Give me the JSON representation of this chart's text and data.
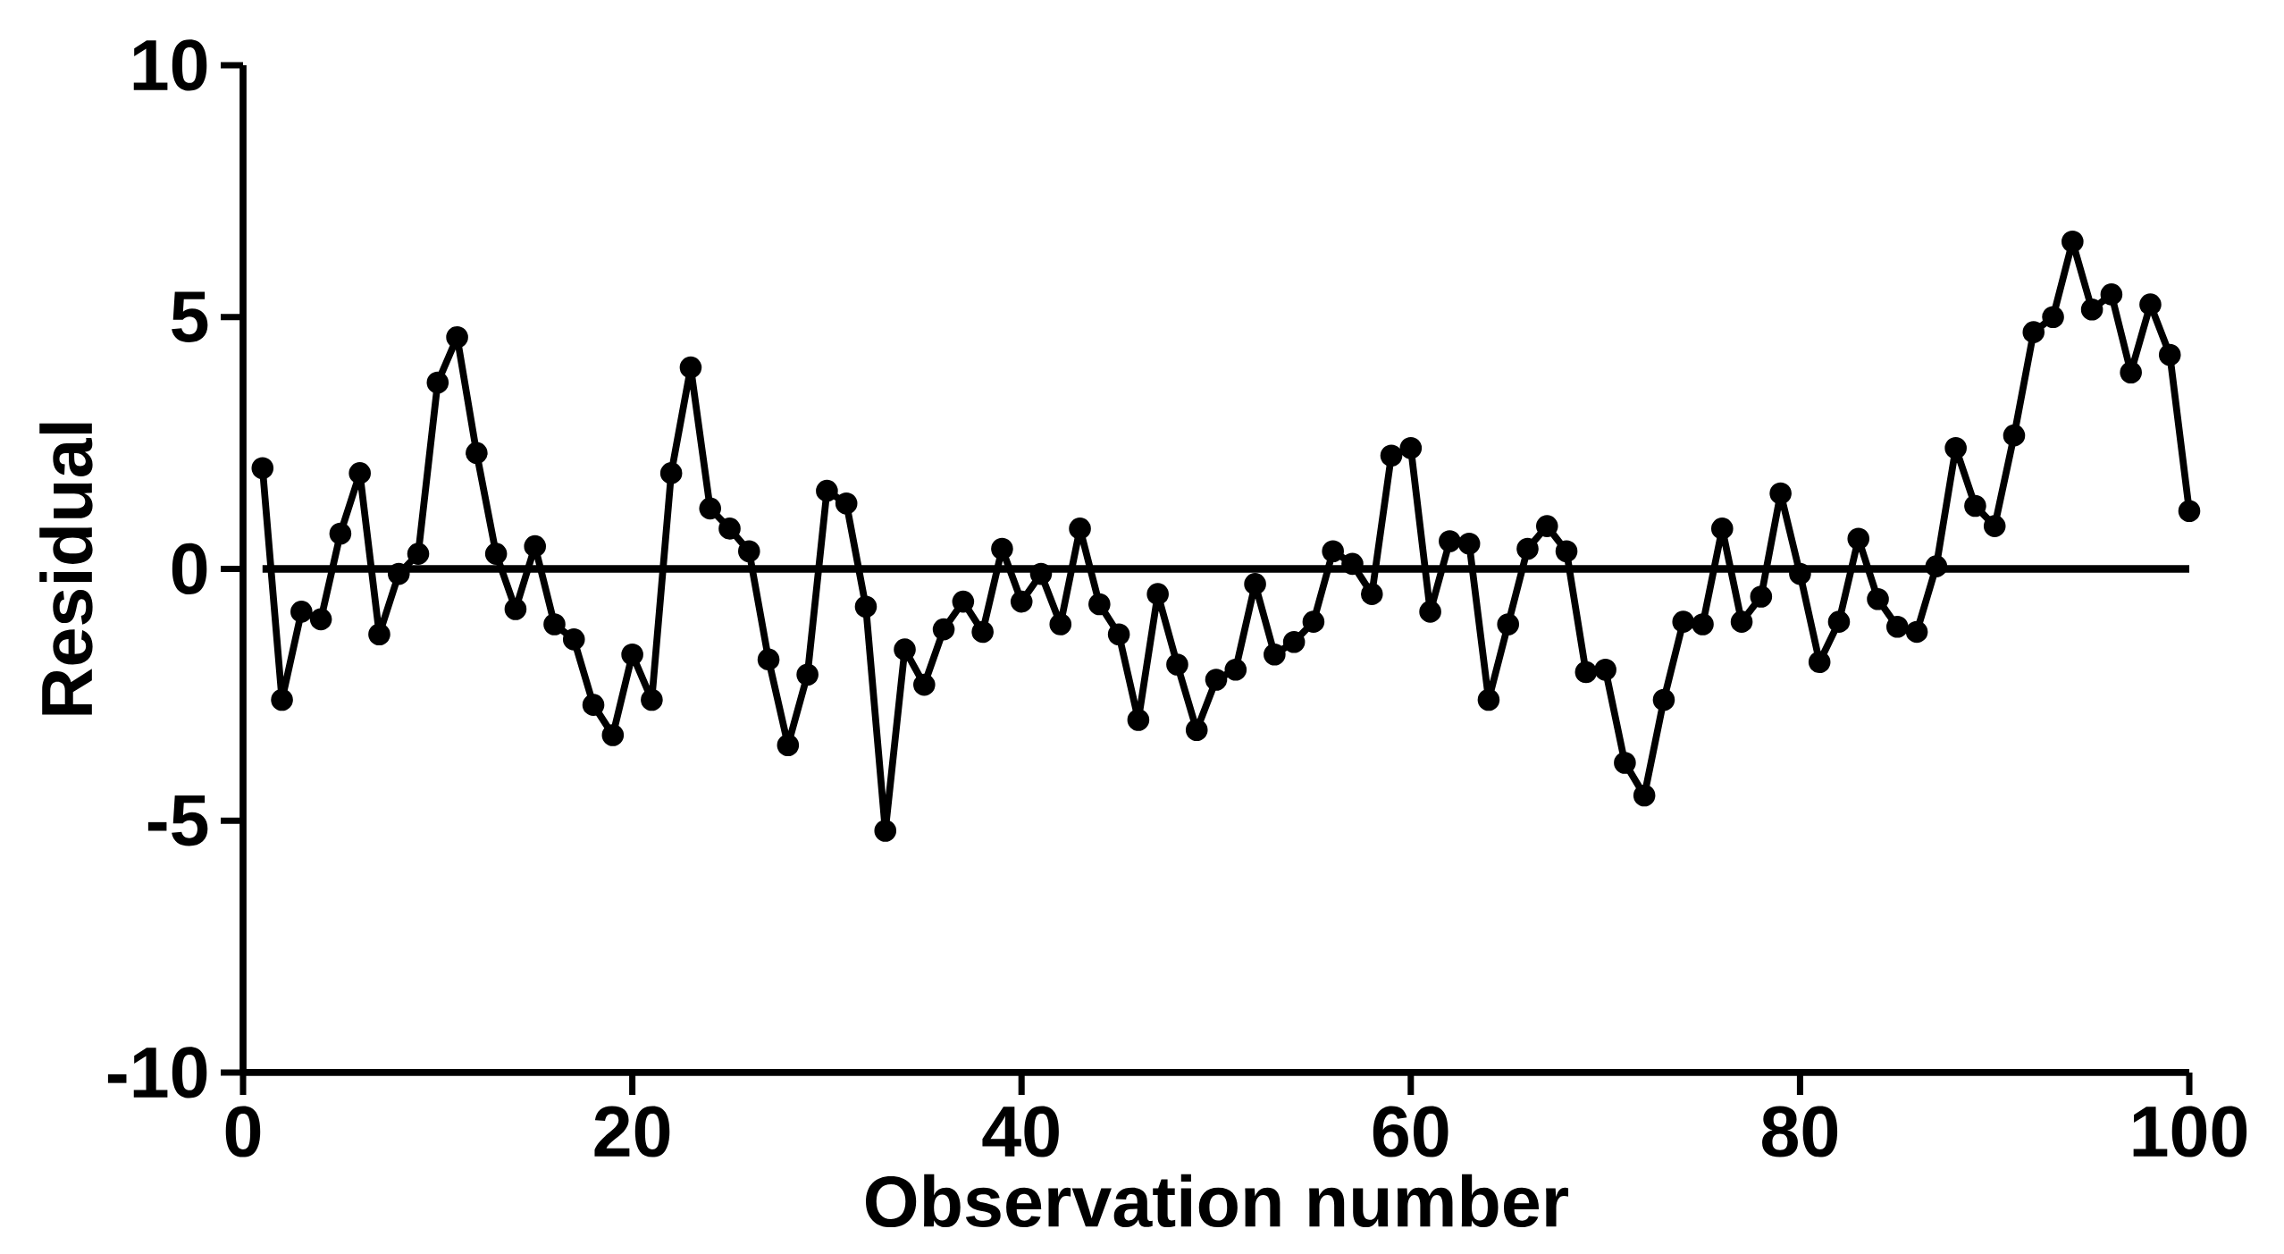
{
  "chart_data": {
    "type": "line",
    "xlabel": "Observation number",
    "ylabel": "Residual",
    "x": [
      1,
      2,
      3,
      4,
      5,
      6,
      7,
      8,
      9,
      10,
      11,
      12,
      13,
      14,
      15,
      16,
      17,
      18,
      19,
      20,
      21,
      22,
      23,
      24,
      25,
      26,
      27,
      28,
      29,
      30,
      31,
      32,
      33,
      34,
      35,
      36,
      37,
      38,
      39,
      40,
      41,
      42,
      43,
      44,
      45,
      46,
      47,
      48,
      49,
      50,
      51,
      52,
      53,
      54,
      55,
      56,
      57,
      58,
      59,
      60,
      61,
      62,
      63,
      64,
      65,
      66,
      67,
      68,
      69,
      70,
      71,
      72,
      73,
      74,
      75,
      76,
      77,
      78,
      79,
      80,
      81,
      82,
      83,
      84,
      85,
      86,
      87,
      88,
      89,
      90,
      91,
      92,
      93,
      94,
      95,
      96,
      97,
      98,
      99,
      100
    ],
    "series": [
      {
        "color": "#000000",
        "values": [
          2.0,
          -2.6,
          -0.85,
          -1.0,
          0.7,
          1.9,
          -1.3,
          -0.1,
          0.3,
          3.7,
          4.6,
          2.3,
          0.3,
          -0.8,
          0.45,
          -1.1,
          -1.4,
          -2.7,
          -3.3,
          -1.7,
          -2.6,
          1.9,
          4.0,
          1.2,
          0.8,
          0.35,
          -1.8,
          -3.5,
          -2.1,
          1.55,
          1.3,
          -0.75,
          -5.2,
          -1.6,
          -2.3,
          -1.2,
          -0.65,
          -1.25,
          0.4,
          -0.65,
          -0.1,
          -1.1,
          0.8,
          -0.7,
          -1.3,
          -3.0,
          -0.5,
          -1.9,
          -3.2,
          -2.2,
          -2.0,
          -0.3,
          -1.7,
          -1.45,
          -1.05,
          0.35,
          0.1,
          -0.5,
          2.25,
          2.4,
          -0.85,
          0.55,
          0.5,
          -2.6,
          -1.1,
          0.4,
          0.85,
          0.35,
          -2.05,
          -2.0,
          -3.85,
          -4.5,
          -2.6,
          -1.05,
          -1.1,
          0.8,
          -1.05,
          -0.55,
          1.5,
          -0.1,
          -1.85,
          -1.05,
          0.6,
          -0.6,
          -1.15,
          -1.25,
          0.05,
          2.4,
          1.25,
          0.85,
          2.65,
          4.7,
          5.0,
          6.5,
          5.15,
          5.45,
          3.9,
          5.25,
          4.25,
          1.15
        ]
      }
    ],
    "xlim": [
      0,
      100
    ],
    "ylim": [
      -10,
      10
    ],
    "xticks": [
      0,
      20,
      40,
      60,
      80,
      100
    ],
    "yticks": [
      -10,
      -5,
      0,
      5,
      10
    ],
    "ref_lines": [
      {
        "axis": "y",
        "value": 0,
        "color": "#000000"
      }
    ],
    "grid": false,
    "marker": "circle",
    "line_style": "solid"
  }
}
